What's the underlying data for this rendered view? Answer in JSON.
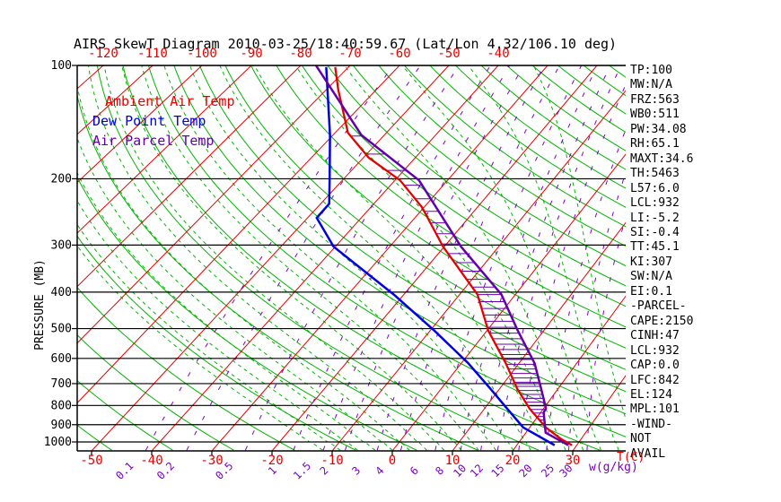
{
  "title": "AIRS SkewT Diagram 2010-03-25/18:40:59.67 (Lat/Lon 4.32/106.10 deg)",
  "legend": {
    "items": [
      {
        "label": "Ambient Air Temp",
        "color": "#e60000"
      },
      {
        "label": "Dew Point Temp",
        "color": "#0000e0"
      },
      {
        "label": "Air Parcel Temp",
        "color": "#6400aa"
      }
    ]
  },
  "panel": {
    "lines": [
      "TP:100",
      "MW:N/A",
      "FRZ:563",
      "WB0:511",
      "PW:34.08",
      "RH:65.1",
      "MAXT:34.6",
      "TH:5463",
      "L57:6.0",
      "LCL:932",
      "LI:-5.2",
      "SI:-0.4",
      "TT:45.1",
      "KI:307",
      "SW:N/A",
      "EI:0.1",
      "-PARCEL-",
      "CAPE:2150",
      "CINH:47",
      "LCL:932",
      "CAP:0.0",
      "LFC:842",
      "EL:124",
      "MPL:101",
      "-WIND-",
      "NOT",
      "AVAIL"
    ]
  },
  "chart_data": {
    "type": "line",
    "subtype": "skewt-log-p-sounding",
    "title": "AIRS SkewT Diagram 2010-03-25/18:40:59.67 (Lat/Lon 4.32/106.10 deg)",
    "pressure_axis": {
      "label": "PRESSURE (MB)",
      "ticks": [
        100,
        200,
        300,
        400,
        500,
        600,
        700,
        800,
        900,
        1000
      ],
      "range": [
        100,
        1052
      ],
      "scale": "log"
    },
    "temp_axis": {
      "unit": "T(C)",
      "top_labels": [
        -120,
        -110,
        -100,
        -90,
        -80,
        -70,
        -60,
        -50,
        -40
      ],
      "bottom_labels": [
        -50,
        -40,
        -30,
        -20,
        -10,
        0,
        10,
        20,
        30
      ]
    },
    "mixing_ratio": {
      "unit": "w(g/kg)",
      "labels": [
        0.1,
        0.2,
        0.5,
        1,
        1.5,
        2,
        3,
        4,
        6,
        8,
        10,
        12,
        15,
        20,
        25,
        30
      ]
    },
    "grid": {
      "isotherms_c": {
        "min": -130,
        "max": 40,
        "step": 10
      },
      "dry_adiabats_c": {
        "min": -50,
        "max": 220,
        "step": 10
      },
      "moist_adiabats_c": {
        "min": -15,
        "max": 39,
        "step": 3
      }
    },
    "colors": {
      "isotherm": "#e60000",
      "adiabat": "#00b400",
      "moist_adiabat": "#00b400",
      "mixing_ratio": "#7d00c8",
      "pressure_line": "#000000",
      "hatch": "#6400aa",
      "frame": "#000000"
    },
    "series": [
      {
        "name": "Ambient Air Temp",
        "color": "#e60000",
        "width": 2.3,
        "points": [
          [
            101,
            -72.7
          ],
          [
            116,
            -67.6
          ],
          [
            151,
            -57.5
          ],
          [
            176,
            -48.9
          ],
          [
            202,
            -39.0
          ],
          [
            238,
            -30.4
          ],
          [
            303,
            -20.2
          ],
          [
            406,
            -6.8
          ],
          [
            506,
            0.2
          ],
          [
            618,
            7.7
          ],
          [
            722,
            13.0
          ],
          [
            815,
            17.6
          ],
          [
            915,
            22.7
          ],
          [
            983,
            26.7
          ],
          [
            1020,
            29.2
          ]
        ]
      },
      {
        "name": "Dew Point Temp",
        "color": "#0000e0",
        "width": 2.5,
        "points": [
          [
            101,
            -74.5
          ],
          [
            153,
            -60.6
          ],
          [
            202,
            -52.4
          ],
          [
            233,
            -48.4
          ],
          [
            254,
            -48.3
          ],
          [
            303,
            -40.3
          ],
          [
            406,
            -21.8
          ],
          [
            506,
            -9.3
          ],
          [
            618,
            1.2
          ],
          [
            722,
            8.4
          ],
          [
            815,
            13.8
          ],
          [
            915,
            18.9
          ],
          [
            1020,
            26.3
          ]
        ]
      },
      {
        "name": "Air Parcel Temp",
        "color": "#6400aa",
        "width": 2.5,
        "points": [
          [
            100,
            -76.9
          ],
          [
            153,
            -54.5
          ],
          [
            202,
            -35.4
          ],
          [
            303,
            -16.9
          ],
          [
            406,
            -2.5
          ],
          [
            506,
            5.4
          ],
          [
            618,
            12.7
          ],
          [
            722,
            17.1
          ],
          [
            815,
            20.4
          ],
          [
            835,
            20.5
          ],
          [
            945,
            23.3
          ],
          [
            1020,
            28.6
          ]
        ]
      }
    ],
    "cape_hatch": {
      "between": [
        "Ambient Air Temp",
        "Air Parcel Temp"
      ],
      "p_min": 154,
      "p_max": 940,
      "p_step_mb": 18
    }
  }
}
